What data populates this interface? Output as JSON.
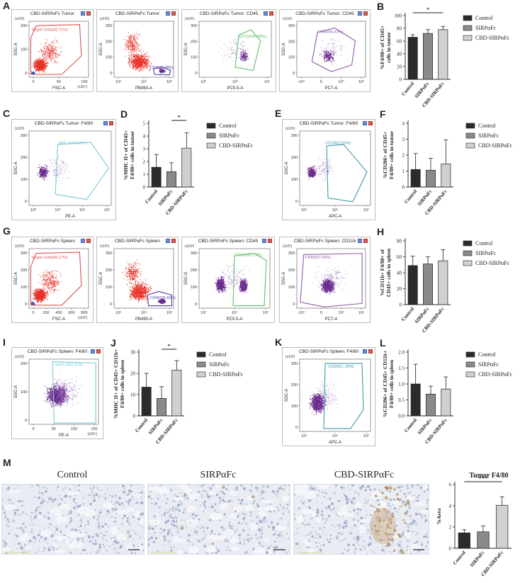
{
  "panels": {
    "A": {
      "letter": "A",
      "plots": [
        {
          "title": "CBD-SIRPαFc Tumor",
          "gate": "Single Cells(82.71%)",
          "xlabel": "FSC-A",
          "ylabel": "SSC-A",
          "xunit": "(x10⁴)",
          "yunit": "(x10³)",
          "xticks": [
            "0",
            "50",
            "100"
          ],
          "yticks": [
            "0",
            "100",
            "200"
          ],
          "style": "red-fsc"
        },
        {
          "title": "CBD-SIRPαFc Tumor",
          "gate": "CD45(5.28%)",
          "xlabel": "PB450-A",
          "ylabel": "SSC-A",
          "xunit": "",
          "yunit": "(x10³)",
          "xticks": [
            "10³",
            "10⁴",
            "10⁵"
          ],
          "yticks": [
            "0",
            "100",
            "200",
            "300"
          ],
          "style": "red-cd45"
        },
        {
          "title": "CBD-SIRPαFc Tumor: CD45",
          "gate": "CD11b(86.88%)",
          "xlabel": "PC5.5-A",
          "ylabel": "SSC-A",
          "xunit": "",
          "yunit": "(x10³)",
          "xticks": [
            "10³",
            "10⁴",
            "10⁵"
          ],
          "yticks": [
            "0",
            "100",
            "200",
            "300"
          ],
          "style": "purple-green"
        },
        {
          "title": "CBD-SIRPαFc Tumor: CD45",
          "gate": "F4/80(84.43%)",
          "xlabel": "PC7-A",
          "ylabel": "SSC-A",
          "xunit": "",
          "yunit": "(x10³)",
          "xticks": [
            "-10⁴",
            "0",
            "10⁴",
            "10⁵"
          ],
          "yticks": [
            "0",
            "100",
            "200",
            "300"
          ],
          "style": "purple-purple"
        }
      ]
    },
    "C": {
      "letter": "C",
      "plot": {
        "title": "CBD-SIRPαFc Tumor: F4/80",
        "gate": "MHC II(28.53%)",
        "xlabel": "PE-A",
        "ylabel": "SSC-A",
        "xunit": "",
        "yunit": "(x10³)",
        "xticks": [
          "10³",
          "10⁴",
          "10⁵",
          "10⁶"
        ],
        "yticks": [
          "0",
          "100",
          "200",
          "300"
        ],
        "style": "purple-cyan-wide"
      }
    },
    "E": {
      "letter": "E",
      "plot": {
        "title": "CBD-SIRPαFc Tumor: F4/80",
        "gate": "CD206(2.50%)",
        "xlabel": "APC-A",
        "ylabel": "SSC-A",
        "xunit": "",
        "yunit": "(x10³)",
        "xticks": [
          "10³",
          "10⁴",
          "10⁵"
        ],
        "yticks": [
          "0",
          "100",
          "200",
          "300"
        ],
        "style": "purple-teal"
      }
    },
    "G": {
      "letter": "G",
      "plots": [
        {
          "title": "CBD-SIRPαFc Spleen",
          "gate": "Single Cells(83.17%)",
          "xlabel": "FSC-A",
          "ylabel": "SSC-A",
          "xunit": "(x10³)",
          "yunit": "(x10³)",
          "xticks": [
            "0",
            "200",
            "400",
            "600",
            "800"
          ],
          "yticks": [
            "0",
            "100",
            "200",
            "300"
          ],
          "style": "red-fsc"
        },
        {
          "title": "CBD-SIRPαFc Spleen",
          "gate": "CD45(35.43%)",
          "xlabel": "PB450-A",
          "ylabel": "SSC-A",
          "xunit": "",
          "yunit": "(x10³)",
          "xticks": [
            "10³",
            "10⁴",
            "10⁵"
          ],
          "yticks": [
            "0",
            "100",
            "200",
            "300"
          ],
          "style": "red-cd45-big"
        },
        {
          "title": "CBD-SIRPαFc Spleen: CD45",
          "gate": "CD11b(62.29%)",
          "xlabel": "PC5.5-A",
          "ylabel": "SSC-A",
          "xunit": "",
          "yunit": "(x10³)",
          "xticks": [
            "10³",
            "10⁴",
            "10⁵"
          ],
          "yticks": [
            "0",
            "100",
            "200",
            "300"
          ],
          "style": "purple-dense-green"
        },
        {
          "title": "CBD-SIRPαFc Spleen: CD11b",
          "gate": "F4/80(97.69%)",
          "xlabel": "PC7-A",
          "ylabel": "SSC-A",
          "xunit": "",
          "yunit": "(x10³)",
          "xticks": [
            "-10⁴",
            "0",
            "10⁴",
            "10⁵"
          ],
          "yticks": [
            "0",
            "100",
            "200",
            "300"
          ],
          "style": "purple-dense-purple"
        }
      ]
    },
    "I": {
      "letter": "I",
      "plot": {
        "title": "CBD-SIRPαFc Spleen: F4/80",
        "gate": "MHC II(58.11%)",
        "xlabel": "PE-A",
        "ylabel": "SSC-A",
        "xunit": "(x10⁴)",
        "yunit": "(x10³)",
        "xticks": [
          "0",
          "50",
          "100",
          "150"
        ],
        "yticks": [
          "0",
          "100",
          "200"
        ],
        "style": "purple-dense-cyan"
      }
    },
    "K": {
      "letter": "K",
      "plot": {
        "title": "CBD-SIRPαFc Spleen: F4/80",
        "gate": "CD206(1.18%)",
        "xlabel": "APC-A",
        "ylabel": "SSC-A",
        "xunit": "",
        "yunit": "(x10³)",
        "xticks": [
          "10³",
          "10⁴",
          "10⁵"
        ],
        "yticks": [
          "0",
          "100",
          "200",
          "300"
        ],
        "style": "purple-dense-teal"
      }
    },
    "M": {
      "letter": "M",
      "labels": [
        "Control",
        "SIRPαFc",
        "CBD-SIRPαFc"
      ]
    }
  },
  "legend": [
    "Control",
    "SIRPαFc",
    "CBD-SIRPαFc"
  ],
  "colors": {
    "control": "#2b2b2b",
    "sirpafc": "#8a8a8a",
    "cbd": "#d0d0d0",
    "red": "#e8332a",
    "purple": "#6b2c8e",
    "green": "#5fbf6a",
    "cyan": "#79c9d9",
    "teal": "#3a9aa8",
    "gate_red": "#d9534f",
    "gate_purple": "#8e5aa8"
  },
  "chart_data": [
    {
      "id": "B",
      "letter": "B",
      "type": "bar",
      "categories": [
        "Control",
        "SIRPαFc",
        "CBD-SIRPαFc"
      ],
      "values": [
        66,
        72,
        78
      ],
      "errors": [
        4,
        6,
        5
      ],
      "ylabel_lines": [
        "%F4/80+ of CD45+",
        "cells in tumor"
      ],
      "ylim": [
        0,
        100
      ],
      "yticks": [
        "0",
        "20",
        "40",
        "60",
        "80",
        "100"
      ],
      "sig": [
        {
          "from": 0,
          "to": 2,
          "label": "*"
        }
      ]
    },
    {
      "id": "D",
      "letter": "D",
      "type": "bar",
      "categories": [
        "Control",
        "SIRPαFc",
        "CBD-SIRPαFc"
      ],
      "values": [
        1.55,
        1.2,
        3.05
      ],
      "errors": [
        1.0,
        0.7,
        1.2
      ],
      "ylabel_lines": [
        "%MHC II+ of CD45+",
        "F4/80+ cells in tumor"
      ],
      "ylim": [
        0,
        5
      ],
      "yticks": [
        "0",
        "1",
        "2",
        "3",
        "4",
        "5"
      ],
      "sig": [
        {
          "from": 1,
          "to": 2,
          "label": "*"
        }
      ]
    },
    {
      "id": "F",
      "letter": "F",
      "type": "bar",
      "categories": [
        "Control",
        "SIRPαFc",
        "CBD-SIRPαFc"
      ],
      "values": [
        1.1,
        1.05,
        1.45
      ],
      "errors": [
        1.0,
        0.75,
        1.5
      ],
      "ylabel_lines": [
        "%CD206+ of CD45+",
        "F4/80+ cells in tumor"
      ],
      "ylim": [
        0,
        4
      ],
      "yticks": [
        "0",
        "1",
        "2",
        "3",
        "4"
      ],
      "sig": []
    },
    {
      "id": "H",
      "letter": "H",
      "type": "bar",
      "categories": [
        "Control",
        "SIRPαFc",
        "CBD-SIRPαFc"
      ],
      "values": [
        49,
        51,
        55
      ],
      "errors": [
        12,
        9,
        14
      ],
      "ylabel_lines": [
        "%CD11b+ F4/80+ of",
        "CD45+ cells in spleen"
      ],
      "ylim": [
        0,
        80
      ],
      "yticks": [
        "0",
        "20",
        "40",
        "60",
        "80"
      ],
      "sig": []
    },
    {
      "id": "J",
      "letter": "J",
      "type": "bar",
      "categories": [
        "Control",
        "SIRPαFc",
        "CBD-SIRPαFc"
      ],
      "values": [
        13.5,
        8.2,
        21.5
      ],
      "errors": [
        6.5,
        5.5,
        4.5
      ],
      "ylabel_lines": [
        "%MHC II+ of CD45+ CD11b+",
        "F4/80+ cells in spleen"
      ],
      "ylim": [
        0,
        30
      ],
      "yticks": [
        "0",
        "10",
        "20",
        "30"
      ],
      "sig": [
        {
          "from": 1,
          "to": 2,
          "label": "*"
        }
      ]
    },
    {
      "id": "L",
      "letter": "L",
      "type": "bar",
      "categories": [
        "Control",
        "SIRPαFc",
        "CBD-SIRPαFc"
      ],
      "values": [
        1.0,
        0.68,
        0.84
      ],
      "errors": [
        0.62,
        0.25,
        0.38
      ],
      "ylabel_lines": [
        "%CD206+ of CD45+ CD11b+",
        "F4/80+ cells in spleen"
      ],
      "ylim": [
        0,
        2.0
      ],
      "yticks": [
        "0.0",
        "0.5",
        "1.0",
        "1.5",
        "2.0"
      ],
      "sig": []
    },
    {
      "id": "M",
      "letter": "",
      "type": "bar",
      "title": "Tumor F4/80",
      "categories": [
        "Control",
        "SIRPαFc",
        "CBD-SIRPαFc"
      ],
      "values": [
        1.45,
        1.55,
        4.05
      ],
      "errors": [
        0.3,
        0.55,
        0.8
      ],
      "ylabel_lines": [
        "%Area"
      ],
      "ylim": [
        0,
        6
      ],
      "yticks": [
        "0",
        "2",
        "4",
        "6"
      ],
      "sig": [
        {
          "from": 0,
          "to": 2,
          "label": "***"
        }
      ]
    }
  ]
}
